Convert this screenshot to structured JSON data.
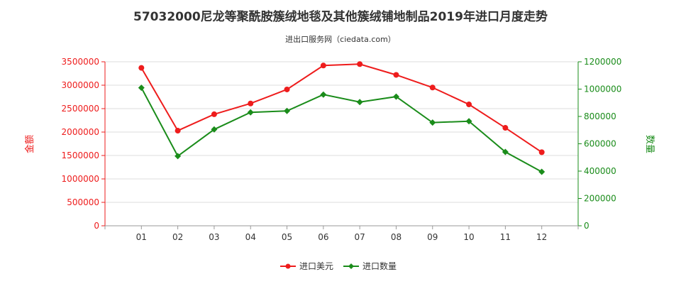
{
  "chart_data": {
    "type": "line",
    "title": "57032000尼龙等聚酰胺簇绒地毯及其他簇绒铺地制品2019年进口月度走势",
    "subtitle": "进出口服务网（ciedata.com）",
    "categories": [
      "01",
      "02",
      "03",
      "04",
      "05",
      "06",
      "07",
      "08",
      "09",
      "10",
      "11",
      "12"
    ],
    "y_left": {
      "label": "金额",
      "ylim": [
        0,
        3500000
      ],
      "ticks": [
        0,
        500000,
        1000000,
        1500000,
        2000000,
        2500000,
        3000000,
        3500000
      ],
      "tick_labels": [
        "0",
        "500000",
        "1000000",
        "1500000",
        "2000000",
        "2500000",
        "3000000",
        "3500000"
      ]
    },
    "y_right": {
      "label": "数量",
      "ylim": [
        0,
        1200000
      ],
      "ticks": [
        0,
        200000,
        400000,
        600000,
        800000,
        1000000,
        1200000
      ],
      "tick_labels": [
        "0",
        "200000",
        "400000",
        "600000",
        "800000",
        "1000000",
        "1200000"
      ]
    },
    "series": [
      {
        "name": "进口美元",
        "axis": "left",
        "color": "#ee1c1c",
        "values": [
          3370000,
          2030000,
          2380000,
          2610000,
          2910000,
          3420000,
          3450000,
          3220000,
          2950000,
          2590000,
          2090000,
          1570000
        ]
      },
      {
        "name": "进口数量",
        "axis": "right",
        "color": "#1a8c1a",
        "values": [
          1010000,
          510000,
          705000,
          830000,
          840000,
          960000,
          905000,
          945000,
          755000,
          765000,
          540000,
          395000
        ]
      }
    ],
    "grid": "horizontal",
    "legend": "bottom-center",
    "left_axis_color": "#ee1c1c",
    "right_axis_color": "#1a8c1a"
  }
}
